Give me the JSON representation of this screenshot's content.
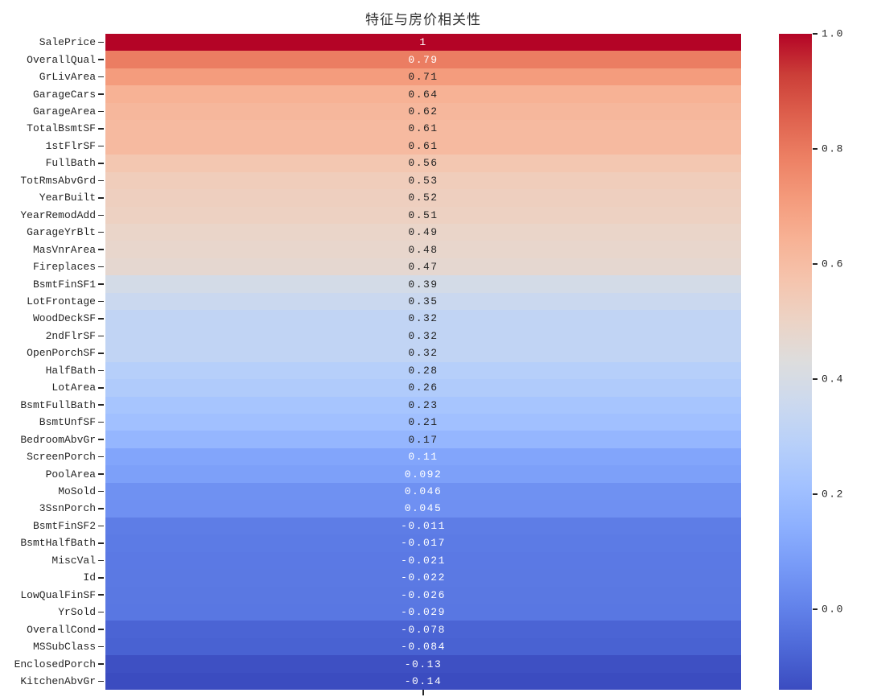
{
  "chart_data": {
    "type": "heatmap",
    "title": "特征与房价相关性",
    "columns": 1,
    "colormap": "coolwarm",
    "vmin": -0.14,
    "vmax": 1.0,
    "color_min": "#3B4CC0",
    "color_mid": "#DDDDDD",
    "color_max": "#B40426",
    "grid": false,
    "legend_position": "right-colorbar",
    "rows": [
      {
        "label": "SalePrice",
        "value": 1,
        "annotation": "1"
      },
      {
        "label": "OverallQual",
        "value": 0.79,
        "annotation": "0.79"
      },
      {
        "label": "GrLivArea",
        "value": 0.71,
        "annotation": "0.71"
      },
      {
        "label": "GarageCars",
        "value": 0.64,
        "annotation": "0.64"
      },
      {
        "label": "GarageArea",
        "value": 0.62,
        "annotation": "0.62"
      },
      {
        "label": "TotalBsmtSF",
        "value": 0.61,
        "annotation": "0.61"
      },
      {
        "label": "1stFlrSF",
        "value": 0.61,
        "annotation": "0.61"
      },
      {
        "label": "FullBath",
        "value": 0.56,
        "annotation": "0.56"
      },
      {
        "label": "TotRmsAbvGrd",
        "value": 0.53,
        "annotation": "0.53"
      },
      {
        "label": "YearBuilt",
        "value": 0.52,
        "annotation": "0.52"
      },
      {
        "label": "YearRemodAdd",
        "value": 0.51,
        "annotation": "0.51"
      },
      {
        "label": "GarageYrBlt",
        "value": 0.49,
        "annotation": "0.49"
      },
      {
        "label": "MasVnrArea",
        "value": 0.48,
        "annotation": "0.48"
      },
      {
        "label": "Fireplaces",
        "value": 0.47,
        "annotation": "0.47"
      },
      {
        "label": "BsmtFinSF1",
        "value": 0.39,
        "annotation": "0.39"
      },
      {
        "label": "LotFrontage",
        "value": 0.35,
        "annotation": "0.35"
      },
      {
        "label": "WoodDeckSF",
        "value": 0.32,
        "annotation": "0.32"
      },
      {
        "label": "2ndFlrSF",
        "value": 0.32,
        "annotation": "0.32"
      },
      {
        "label": "OpenPorchSF",
        "value": 0.32,
        "annotation": "0.32"
      },
      {
        "label": "HalfBath",
        "value": 0.28,
        "annotation": "0.28"
      },
      {
        "label": "LotArea",
        "value": 0.26,
        "annotation": "0.26"
      },
      {
        "label": "BsmtFullBath",
        "value": 0.23,
        "annotation": "0.23"
      },
      {
        "label": "BsmtUnfSF",
        "value": 0.21,
        "annotation": "0.21"
      },
      {
        "label": "BedroomAbvGr",
        "value": 0.17,
        "annotation": "0.17"
      },
      {
        "label": "ScreenPorch",
        "value": 0.11,
        "annotation": "0.11"
      },
      {
        "label": "PoolArea",
        "value": 0.092,
        "annotation": "0.092"
      },
      {
        "label": "MoSold",
        "value": 0.046,
        "annotation": "0.046"
      },
      {
        "label": "3SsnPorch",
        "value": 0.045,
        "annotation": "0.045"
      },
      {
        "label": "BsmtFinSF2",
        "value": -0.011,
        "annotation": "-0.011"
      },
      {
        "label": "BsmtHalfBath",
        "value": -0.017,
        "annotation": "-0.017"
      },
      {
        "label": "MiscVal",
        "value": -0.021,
        "annotation": "-0.021"
      },
      {
        "label": "Id",
        "value": -0.022,
        "annotation": "-0.022"
      },
      {
        "label": "LowQualFinSF",
        "value": -0.026,
        "annotation": "-0.026"
      },
      {
        "label": "YrSold",
        "value": -0.029,
        "annotation": "-0.029"
      },
      {
        "label": "OverallCond",
        "value": -0.078,
        "annotation": "-0.078"
      },
      {
        "label": "MSSubClass",
        "value": -0.084,
        "annotation": "-0.084"
      },
      {
        "label": "EnclosedPorch",
        "value": -0.13,
        "annotation": "-0.13"
      },
      {
        "label": "KitchenAbvGr",
        "value": -0.14,
        "annotation": "-0.14"
      }
    ],
    "colorbar": {
      "ticks": [
        1.0,
        0.8,
        0.6,
        0.4,
        0.2,
        0.0
      ],
      "tick_labels": [
        "1.0",
        "0.8",
        "0.6",
        "0.4",
        "0.2",
        "0.0"
      ]
    }
  }
}
